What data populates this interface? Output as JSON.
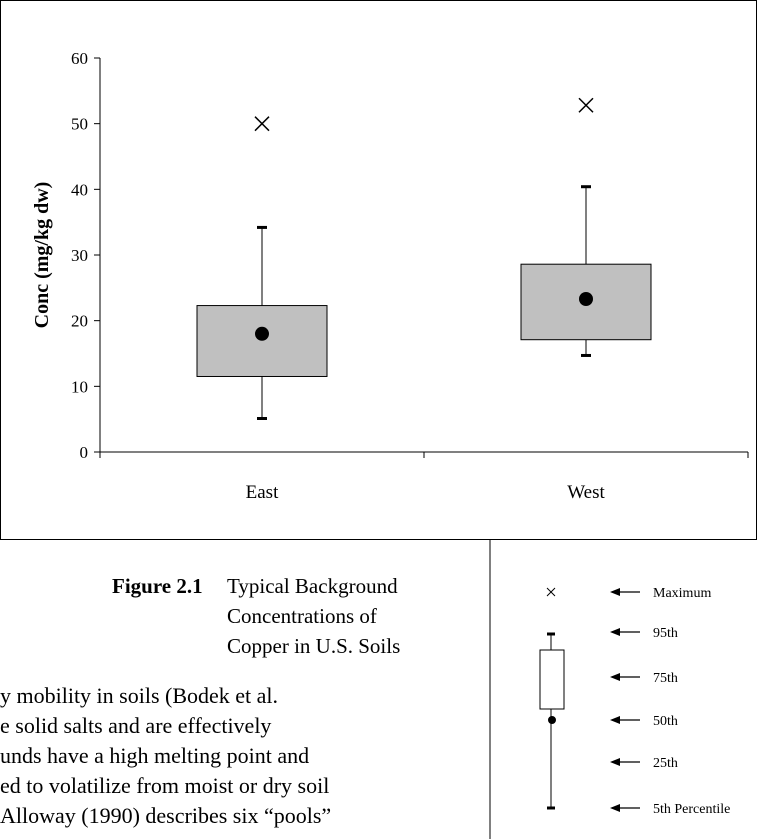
{
  "chart_data": {
    "type": "box",
    "ylabel": "Conc (mg/kg dw)",
    "categories": [
      "East",
      "West"
    ],
    "max": [
      50,
      52.8
    ],
    "p95": [
      34.2,
      40.4
    ],
    "p75": [
      22.3,
      28.6
    ],
    "median": [
      18,
      23.3
    ],
    "p25": [
      11.5,
      17.1
    ],
    "p5": [
      5.1,
      14.7
    ],
    "ylim": [
      0,
      60
    ],
    "yticks": [
      0,
      10,
      20,
      30,
      40,
      50,
      60
    ],
    "color": "#c0c0c0"
  },
  "caption": {
    "label": "Figure 2.1",
    "lines": [
      "Typical Background",
      "Concentrations of",
      "Copper in U.S. Soils"
    ]
  },
  "legend": {
    "labels": [
      "Maximum",
      "95th",
      "75th",
      "50th",
      "25th",
      "5th Percentile"
    ]
  },
  "body": {
    "lines": [
      "y mobility in soils (Bodek et al.",
      "e solid salts and are effectively",
      "unds have a high melting point and",
      "ed to volatilize from moist or dry soil",
      "Alloway (1990) describes six “pools”"
    ]
  }
}
